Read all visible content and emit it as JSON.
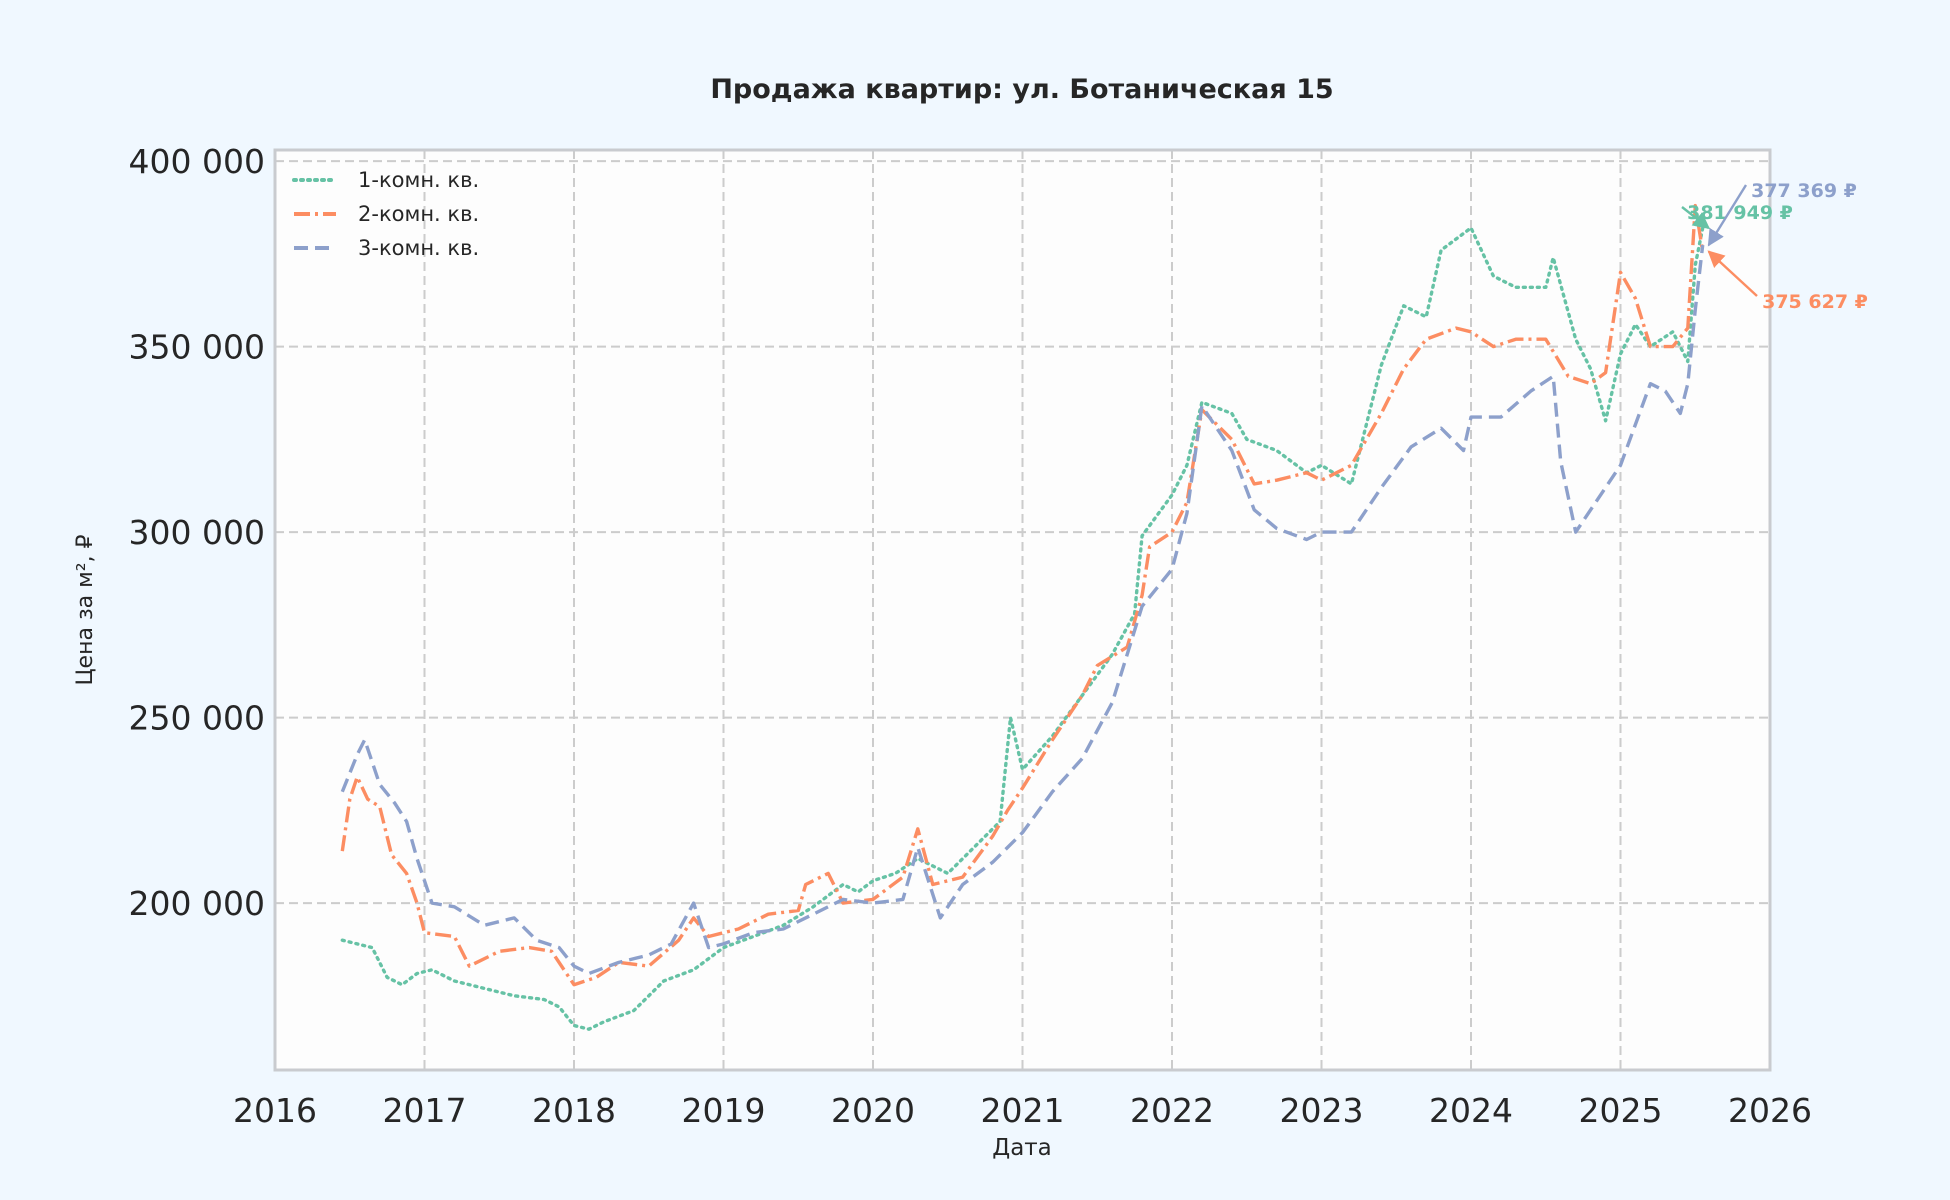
{
  "chart_data": {
    "type": "line",
    "title": "Продажа квартир: ул. Ботаническая 15",
    "xlabel": "Дата",
    "ylabel": "Цена за м², ₽",
    "x_ticks": [
      "2016",
      "2017",
      "2018",
      "2019",
      "2020",
      "2021",
      "2022",
      "2023",
      "2024",
      "2025",
      "2026"
    ],
    "y_ticks": [
      "200 000",
      "250 000",
      "300 000",
      "350 000",
      "400 000"
    ],
    "xlim": [
      2016.0,
      2026.0
    ],
    "ylim": [
      155000,
      403000
    ],
    "grid": true,
    "legend_position": "top-left",
    "colors": {
      "background": "#f0f8ff",
      "plot_bg": "#fdfdfd",
      "grid": "#cccccc",
      "spine": "#c9cbcf",
      "text": "#262626"
    },
    "series": [
      {
        "name": "1-комн. кв.",
        "color": "#66c2a5",
        "dash": "dotted",
        "final_label": "381 949 ₽",
        "points": [
          [
            2016.45,
            190000
          ],
          [
            2016.55,
            189000
          ],
          [
            2016.65,
            188000
          ],
          [
            2016.75,
            180000
          ],
          [
            2016.85,
            178000
          ],
          [
            2016.95,
            181000
          ],
          [
            2017.05,
            182000
          ],
          [
            2017.2,
            179000
          ],
          [
            2017.4,
            177000
          ],
          [
            2017.6,
            175000
          ],
          [
            2017.8,
            174000
          ],
          [
            2017.9,
            172000
          ],
          [
            2018.0,
            167000
          ],
          [
            2018.1,
            166000
          ],
          [
            2018.2,
            168000
          ],
          [
            2018.4,
            171000
          ],
          [
            2018.5,
            175000
          ],
          [
            2018.6,
            179000
          ],
          [
            2018.8,
            182000
          ],
          [
            2019.0,
            188000
          ],
          [
            2019.2,
            191000
          ],
          [
            2019.4,
            194000
          ],
          [
            2019.6,
            199000
          ],
          [
            2019.8,
            205000
          ],
          [
            2019.9,
            203000
          ],
          [
            2020.0,
            206000
          ],
          [
            2020.15,
            208000
          ],
          [
            2020.3,
            212000
          ],
          [
            2020.5,
            208000
          ],
          [
            2020.7,
            216000
          ],
          [
            2020.85,
            222000
          ],
          [
            2020.92,
            250000
          ],
          [
            2021.0,
            236000
          ],
          [
            2021.2,
            245000
          ],
          [
            2021.4,
            256000
          ],
          [
            2021.6,
            267000
          ],
          [
            2021.75,
            278000
          ],
          [
            2021.8,
            299000
          ],
          [
            2022.0,
            310000
          ],
          [
            2022.1,
            318000
          ],
          [
            2022.2,
            335000
          ],
          [
            2022.4,
            332000
          ],
          [
            2022.5,
            325000
          ],
          [
            2022.7,
            322000
          ],
          [
            2022.9,
            316000
          ],
          [
            2023.0,
            318000
          ],
          [
            2023.2,
            313000
          ],
          [
            2023.4,
            345000
          ],
          [
            2023.55,
            361000
          ],
          [
            2023.7,
            358000
          ],
          [
            2023.8,
            376000
          ],
          [
            2024.0,
            382000
          ],
          [
            2024.15,
            369000
          ],
          [
            2024.3,
            366000
          ],
          [
            2024.5,
            366000
          ],
          [
            2024.55,
            374000
          ],
          [
            2024.7,
            352000
          ],
          [
            2024.8,
            344000
          ],
          [
            2024.9,
            330000
          ],
          [
            2025.0,
            348000
          ],
          [
            2025.1,
            356000
          ],
          [
            2025.2,
            350000
          ],
          [
            2025.35,
            354000
          ],
          [
            2025.45,
            346000
          ],
          [
            2025.5,
            372000
          ],
          [
            2025.55,
            381949
          ]
        ]
      },
      {
        "name": "2-комн. кв.",
        "color": "#fc8d62",
        "dash": "dashdot",
        "final_label": "375 627 ₽",
        "points": [
          [
            2016.45,
            214000
          ],
          [
            2016.5,
            228000
          ],
          [
            2016.55,
            234000
          ],
          [
            2016.62,
            228000
          ],
          [
            2016.7,
            226000
          ],
          [
            2016.78,
            213000
          ],
          [
            2016.88,
            208000
          ],
          [
            2016.95,
            200000
          ],
          [
            2017.0,
            192000
          ],
          [
            2017.2,
            191000
          ],
          [
            2017.3,
            183000
          ],
          [
            2017.5,
            187000
          ],
          [
            2017.7,
            188000
          ],
          [
            2017.85,
            187000
          ],
          [
            2018.0,
            178000
          ],
          [
            2018.15,
            180000
          ],
          [
            2018.3,
            184000
          ],
          [
            2018.5,
            183000
          ],
          [
            2018.7,
            190000
          ],
          [
            2018.8,
            196000
          ],
          [
            2018.9,
            191000
          ],
          [
            2019.1,
            193000
          ],
          [
            2019.3,
            197000
          ],
          [
            2019.5,
            198000
          ],
          [
            2019.55,
            205000
          ],
          [
            2019.7,
            208000
          ],
          [
            2019.8,
            200000
          ],
          [
            2020.0,
            201000
          ],
          [
            2020.2,
            207000
          ],
          [
            2020.3,
            220000
          ],
          [
            2020.4,
            205000
          ],
          [
            2020.6,
            207000
          ],
          [
            2020.8,
            218000
          ],
          [
            2020.9,
            225000
          ],
          [
            2021.0,
            231000
          ],
          [
            2021.2,
            244000
          ],
          [
            2021.4,
            256000
          ],
          [
            2021.5,
            264000
          ],
          [
            2021.7,
            269000
          ],
          [
            2021.8,
            283000
          ],
          [
            2021.85,
            296000
          ],
          [
            2022.0,
            300000
          ],
          [
            2022.1,
            308000
          ],
          [
            2022.2,
            333000
          ],
          [
            2022.4,
            325000
          ],
          [
            2022.55,
            313000
          ],
          [
            2022.7,
            314000
          ],
          [
            2022.9,
            316000
          ],
          [
            2023.0,
            314000
          ],
          [
            2023.2,
            318000
          ],
          [
            2023.4,
            332000
          ],
          [
            2023.55,
            344000
          ],
          [
            2023.7,
            352000
          ],
          [
            2023.9,
            355000
          ],
          [
            2024.0,
            354000
          ],
          [
            2024.15,
            350000
          ],
          [
            2024.3,
            352000
          ],
          [
            2024.5,
            352000
          ],
          [
            2024.65,
            342000
          ],
          [
            2024.8,
            340000
          ],
          [
            2024.9,
            343000
          ],
          [
            2025.0,
            370000
          ],
          [
            2025.1,
            363000
          ],
          [
            2025.2,
            350000
          ],
          [
            2025.35,
            350000
          ],
          [
            2025.45,
            355000
          ],
          [
            2025.5,
            388000
          ],
          [
            2025.55,
            375627
          ]
        ]
      },
      {
        "name": "3-комн. кв.",
        "color": "#8da0cb",
        "dash": "dashed",
        "final_label": "377 369 ₽",
        "points": [
          [
            2016.45,
            230000
          ],
          [
            2016.55,
            240000
          ],
          [
            2016.6,
            244000
          ],
          [
            2016.7,
            232000
          ],
          [
            2016.8,
            227000
          ],
          [
            2016.88,
            222000
          ],
          [
            2016.95,
            212000
          ],
          [
            2017.05,
            200000
          ],
          [
            2017.2,
            199000
          ],
          [
            2017.4,
            194000
          ],
          [
            2017.6,
            196000
          ],
          [
            2017.75,
            190000
          ],
          [
            2017.9,
            188000
          ],
          [
            2018.0,
            183000
          ],
          [
            2018.1,
            181000
          ],
          [
            2018.3,
            184000
          ],
          [
            2018.5,
            186000
          ],
          [
            2018.65,
            189000
          ],
          [
            2018.8,
            200000
          ],
          [
            2018.9,
            188000
          ],
          [
            2019.0,
            189000
          ],
          [
            2019.2,
            192000
          ],
          [
            2019.4,
            193000
          ],
          [
            2019.6,
            197000
          ],
          [
            2019.8,
            201000
          ],
          [
            2020.0,
            200000
          ],
          [
            2020.2,
            201000
          ],
          [
            2020.3,
            215000
          ],
          [
            2020.45,
            196000
          ],
          [
            2020.6,
            205000
          ],
          [
            2020.8,
            211000
          ],
          [
            2021.0,
            219000
          ],
          [
            2021.2,
            230000
          ],
          [
            2021.4,
            239000
          ],
          [
            2021.6,
            254000
          ],
          [
            2021.8,
            280000
          ],
          [
            2022.0,
            290000
          ],
          [
            2022.1,
            305000
          ],
          [
            2022.2,
            334000
          ],
          [
            2022.4,
            322000
          ],
          [
            2022.55,
            306000
          ],
          [
            2022.7,
            301000
          ],
          [
            2022.9,
            298000
          ],
          [
            2023.0,
            300000
          ],
          [
            2023.2,
            300000
          ],
          [
            2023.4,
            312000
          ],
          [
            2023.6,
            323000
          ],
          [
            2023.8,
            328000
          ],
          [
            2023.95,
            322000
          ],
          [
            2024.0,
            331000
          ],
          [
            2024.2,
            331000
          ],
          [
            2024.4,
            338000
          ],
          [
            2024.55,
            342000
          ],
          [
            2024.6,
            319000
          ],
          [
            2024.7,
            300000
          ],
          [
            2024.85,
            309000
          ],
          [
            2025.0,
            318000
          ],
          [
            2025.1,
            329000
          ],
          [
            2025.2,
            340000
          ],
          [
            2025.3,
            338000
          ],
          [
            2025.4,
            332000
          ],
          [
            2025.45,
            340000
          ],
          [
            2025.5,
            360000
          ],
          [
            2025.55,
            377369
          ]
        ]
      }
    ]
  }
}
